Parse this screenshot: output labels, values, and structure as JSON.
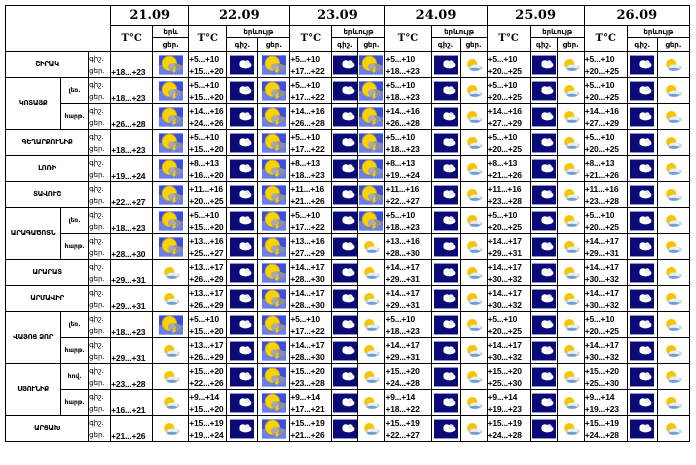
{
  "header": {
    "temp_label": "T°C",
    "phenomenon_label": "երևույթ",
    "phenomenon_short": "երև",
    "night_label": "գիշ.",
    "day_label": "ցեր.",
    "dates": [
      "21.09",
      "22.09",
      "23.09",
      "24.09",
      "25.09",
      "26.09"
    ]
  },
  "icons": {
    "storm": "sun-cloud-lightning-icon",
    "night": "moon-cloud-icon",
    "partly": "sun-behind-cloud-icon"
  },
  "colors": {
    "storm_bg": "#3a4fe0",
    "night_bg": "#0a0a7a",
    "sun": "#f5d000"
  },
  "regions": [
    {
      "name": "ՇԻՐԱԿ",
      "sub": null,
      "d21": {
        "t": "+18...+23",
        "icon": "storm"
      },
      "days": [
        {
          "night": "+5...+10",
          "day": "+15...+20",
          "di": "storm"
        },
        {
          "night": "+5...+10",
          "day": "+17...+22",
          "di": "storm"
        },
        {
          "night": "+5...+10",
          "day": "+18...+23",
          "di": "partly"
        },
        {
          "night": "+5...+10",
          "day": "+20...+25",
          "di": "partly"
        },
        {
          "night": "+5...+10",
          "day": "+20...+25",
          "di": "partly"
        }
      ]
    },
    {
      "name": "ԿՈՏԱՅՔ",
      "sub": "լեռ.",
      "span": 2,
      "d21": {
        "t": "+18...+23",
        "icon": "storm"
      },
      "days": [
        {
          "night": "+5...+10",
          "day": "+15...+20",
          "di": "storm"
        },
        {
          "night": "+5...+10",
          "day": "+17...+22",
          "di": "storm"
        },
        {
          "night": "+5...+10",
          "day": "+18...+23",
          "di": "partly"
        },
        {
          "night": "+5...+10",
          "day": "+20...+25",
          "di": "partly"
        },
        {
          "night": "+5...+10",
          "day": "+20...+25",
          "di": "partly"
        }
      ]
    },
    {
      "name": null,
      "sub": "հարթ.",
      "d21": {
        "t": "+26...+28",
        "icon": "storm"
      },
      "days": [
        {
          "night": "+14...+16",
          "day": "+24...+26",
          "di": "storm"
        },
        {
          "night": "+14...+16",
          "day": "+26...+28",
          "di": "storm"
        },
        {
          "night": "+14...+16",
          "day": "+26...+28",
          "di": "partly"
        },
        {
          "night": "+14...+16",
          "day": "+27...+29",
          "di": "partly"
        },
        {
          "night": "+14...+16",
          "day": "+27...+29",
          "di": "partly"
        }
      ]
    },
    {
      "name": "ԳԵՂԱՐՔՈՒՆԻՔ",
      "sub": null,
      "d21": {
        "t": "+18...+23",
        "icon": "storm"
      },
      "days": [
        {
          "night": "+5...+10",
          "day": "+15...+20",
          "di": "storm"
        },
        {
          "night": "+5...+10",
          "day": "+17...+22",
          "di": "storm"
        },
        {
          "night": "+5...+10",
          "day": "+18...+23",
          "di": "partly"
        },
        {
          "night": "+5...+10",
          "day": "+20...+25",
          "di": "partly"
        },
        {
          "night": "+5...+10",
          "day": "+20...+25",
          "di": "partly"
        }
      ]
    },
    {
      "name": "ԼՈՌԻ",
      "sub": null,
      "d21": {
        "t": "+19...+24",
        "icon": "storm"
      },
      "days": [
        {
          "night": "+8...+13",
          "day": "+16...+20",
          "di": "storm"
        },
        {
          "night": "+8...+13",
          "day": "+18...+23",
          "di": "storm"
        },
        {
          "night": "+8...+13",
          "day": "+19...+24",
          "di": "partly"
        },
        {
          "night": "+8...+13",
          "day": "+21...+26",
          "di": "partly"
        },
        {
          "night": "+8...+13",
          "day": "+21...+26",
          "di": "partly"
        }
      ]
    },
    {
      "name": "ՏԱՎՈՒՇ",
      "sub": null,
      "d21": {
        "t": "+22...+27",
        "icon": "storm"
      },
      "days": [
        {
          "night": "+11...+16",
          "day": "+20...+25",
          "di": "storm"
        },
        {
          "night": "+11...+16",
          "day": "+21...+26",
          "di": "storm"
        },
        {
          "night": "+11...+16",
          "day": "+22...+27",
          "di": "partly"
        },
        {
          "night": "+11...+16",
          "day": "+23...+28",
          "di": "partly"
        },
        {
          "night": "+11...+16",
          "day": "+23...+28",
          "di": "partly"
        }
      ]
    },
    {
      "name": "ԱՐԱԳԱԾՈՏՆ",
      "sub": "լեռ.",
      "span": 2,
      "d21": {
        "t": "+18...+23",
        "icon": "storm"
      },
      "days": [
        {
          "night": "+5...+10",
          "day": "+15...+20",
          "di": "storm"
        },
        {
          "night": "+5...+10",
          "day": "+17...+22",
          "di": "storm"
        },
        {
          "night": "+5...+10",
          "day": "+18...+23",
          "di": "partly"
        },
        {
          "night": "+5...+10",
          "day": "+20...+25",
          "di": "partly"
        },
        {
          "night": "+5...+10",
          "day": "+20...+25",
          "di": "partly"
        }
      ]
    },
    {
      "name": null,
      "sub": "հարթ.",
      "d21": {
        "t": "+28...+30",
        "icon": "storm"
      },
      "days": [
        {
          "night": "+13...+16",
          "day": "+25...+27",
          "di": "storm"
        },
        {
          "night": "+13...+16",
          "day": "+27...+29",
          "di": "partly"
        },
        {
          "night": "+13...+16",
          "day": "+28...+30",
          "di": "partly"
        },
        {
          "night": "+14...+17",
          "day": "+29...+31",
          "di": "partly"
        },
        {
          "night": "+14...+17",
          "day": "+29...+31",
          "di": "partly"
        }
      ]
    },
    {
      "name": "ԱՐԱՐԱՏ",
      "sub": null,
      "d21": {
        "t": "+29...+31",
        "icon": "partly"
      },
      "days": [
        {
          "night": "+13...+17",
          "day": "+26...+29",
          "di": "storm"
        },
        {
          "night": "+14...+17",
          "day": "+28...+30",
          "di": "partly"
        },
        {
          "night": "+14...+17",
          "day": "+29...+31",
          "di": "partly"
        },
        {
          "night": "+14...+17",
          "day": "+30...+32",
          "di": "partly"
        },
        {
          "night": "+14...+17",
          "day": "+30...+32",
          "di": "partly"
        }
      ]
    },
    {
      "name": "ԱՐՄԱՎԻՐ",
      "sub": null,
      "d21": {
        "t": "+29...+31",
        "icon": "partly"
      },
      "days": [
        {
          "night": "+13...+17",
          "day": "+26...+29",
          "di": "storm"
        },
        {
          "night": "+14...+17",
          "day": "+28...+30",
          "di": "partly"
        },
        {
          "night": "+14...+17",
          "day": "+29...+31",
          "di": "partly"
        },
        {
          "night": "+14...+17",
          "day": "+30...+32",
          "di": "partly"
        },
        {
          "night": "+14...+17",
          "day": "+30...+32",
          "di": "partly"
        }
      ]
    },
    {
      "name": "ՎԱՅՈՑ ՁՈՐ",
      "sub": "լեռ.",
      "span": 2,
      "d21": {
        "t": "+18...+23",
        "icon": "storm"
      },
      "days": [
        {
          "night": "+5...+10",
          "day": "+15...+20",
          "di": "storm"
        },
        {
          "night": "+5...+10",
          "day": "+17...+22",
          "di": "partly"
        },
        {
          "night": "+5...+10",
          "day": "+18...+23",
          "di": "partly"
        },
        {
          "night": "+5...+10",
          "day": "+20...+25",
          "di": "partly"
        },
        {
          "night": "+5...+10",
          "day": "+20...+25",
          "di": "partly"
        }
      ]
    },
    {
      "name": null,
      "sub": "հարթ.",
      "d21": {
        "t": "+29...+31",
        "icon": "partly"
      },
      "days": [
        {
          "night": "+13...+17",
          "day": "+26...+29",
          "di": "storm"
        },
        {
          "night": "+14...+17",
          "day": "+28...+30",
          "di": "partly"
        },
        {
          "night": "+14...+17",
          "day": "+29...+31",
          "di": "partly"
        },
        {
          "night": "+14...+17",
          "day": "+30...+32",
          "di": "partly"
        },
        {
          "night": "+14...+17",
          "day": "+30...+32",
          "di": "partly"
        }
      ]
    },
    {
      "name": "ՍՅՈՒՆԻՔ",
      "sub": "հով.",
      "span": 2,
      "d21": {
        "t": "+23...+28",
        "icon": "partly"
      },
      "days": [
        {
          "night": "+15...+20",
          "day": "+22...+26",
          "di": "storm"
        },
        {
          "night": "+15...+20",
          "day": "+23...+28",
          "di": "partly"
        },
        {
          "night": "+15...+20",
          "day": "+24...+28",
          "di": "partly"
        },
        {
          "night": "+15...+20",
          "day": "+25...+30",
          "di": "partly"
        },
        {
          "night": "+15...+20",
          "day": "+25...+30",
          "di": "partly"
        }
      ]
    },
    {
      "name": null,
      "sub": "հարթ.",
      "d21": {
        "t": "+16...+21",
        "icon": "partly"
      },
      "days": [
        {
          "night": "+9...+14",
          "day": "+15...+20",
          "di": "storm"
        },
        {
          "night": "+9...+14",
          "day": "+17...+21",
          "di": "partly"
        },
        {
          "night": "+9...+14",
          "day": "+18...+22",
          "di": "partly"
        },
        {
          "night": "+9...+14",
          "day": "+19...+23",
          "di": "partly"
        },
        {
          "night": "+9...+14",
          "day": "+19...+23",
          "di": "partly"
        }
      ]
    },
    {
      "name": "ԱՐՑԱԽ",
      "sub": null,
      "d21": {
        "t": "+21...+26",
        "icon": "partly"
      },
      "days": [
        {
          "night": "+15...+19",
          "day": "+19...+24",
          "di": "storm"
        },
        {
          "night": "+15...+19",
          "day": "+21...+26",
          "di": "partly"
        },
        {
          "night": "+15...+19",
          "day": "+22...+27",
          "di": "partly"
        },
        {
          "night": "+15...+19",
          "day": "+24...+28",
          "di": "partly"
        },
        {
          "night": "+15...+19",
          "day": "+24...+28",
          "di": "partly"
        }
      ]
    }
  ]
}
